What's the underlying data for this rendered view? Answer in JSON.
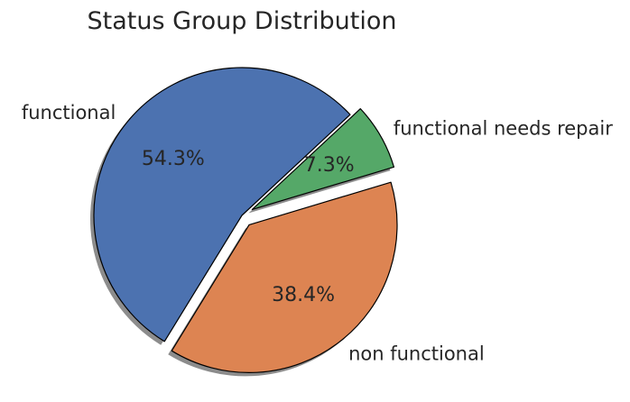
{
  "chart_data": {
    "type": "pie",
    "title": "Status Group Distribution",
    "slices": [
      {
        "label": "functional",
        "value": 54.3,
        "pct_label": "54.3%",
        "color": "#4c72b0",
        "exploded": false
      },
      {
        "label": "non functional",
        "value": 38.4,
        "pct_label": "38.4%",
        "color": "#dd8452",
        "exploded": true
      },
      {
        "label": "functional needs repair",
        "value": 7.3,
        "pct_label": "7.3%",
        "color": "#55a868",
        "exploded": true
      }
    ],
    "shadow": true,
    "legend": "none"
  }
}
